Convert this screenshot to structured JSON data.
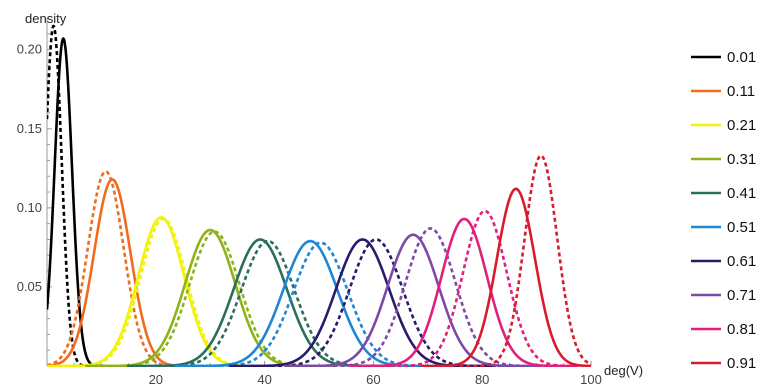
{
  "chart_data": {
    "type": "line",
    "title": "",
    "xlabel": "deg(V)",
    "ylabel": "density",
    "xlim": [
      0,
      100
    ],
    "ylim": [
      0,
      0.215
    ],
    "x_ticks": [
      20,
      40,
      60,
      80,
      100
    ],
    "y_ticks": [
      0.05,
      0.1,
      0.15,
      0.2
    ],
    "x_tick_labels": [
      "20",
      "40",
      "60",
      "80",
      "100"
    ],
    "y_tick_labels": [
      "0.05",
      "0.10",
      "0.15",
      "0.20"
    ],
    "grid": false,
    "legend_position": "right",
    "line_styles": {
      "solid": "curve",
      "dashed": "approximation"
    },
    "series": [
      {
        "name": "0.01",
        "color": "#000000",
        "solid": {
          "mean": 3.0,
          "sd": 1.6,
          "peak": 0.207
        },
        "dashed": {
          "mean": 1.2,
          "sd": 1.5,
          "peak": 0.215
        }
      },
      {
        "name": "0.11",
        "color": "#f26b1d",
        "solid": {
          "mean": 12.0,
          "sd": 3.35,
          "peak": 0.118
        },
        "dashed": {
          "mean": 10.8,
          "sd": 3.3,
          "peak": 0.123
        }
      },
      {
        "name": "0.21",
        "color": "#f2f20d",
        "solid": {
          "mean": 21.0,
          "sd": 4.2,
          "peak": 0.094
        },
        "dashed": {
          "mean": 21.4,
          "sd": 4.2,
          "peak": 0.093
        }
      },
      {
        "name": "0.31",
        "color": "#8db31a",
        "solid": {
          "mean": 30.0,
          "sd": 4.6,
          "peak": 0.086
        },
        "dashed": {
          "mean": 30.8,
          "sd": 4.6,
          "peak": 0.085
        }
      },
      {
        "name": "0.41",
        "color": "#2a6e5e",
        "solid": {
          "mean": 39.2,
          "sd": 4.9,
          "peak": 0.08
        },
        "dashed": {
          "mean": 40.6,
          "sd": 4.9,
          "peak": 0.079
        }
      },
      {
        "name": "0.51",
        "color": "#1f86d6",
        "solid": {
          "mean": 48.4,
          "sd": 5.0,
          "peak": 0.079
        },
        "dashed": {
          "mean": 50.3,
          "sd": 5.0,
          "peak": 0.078
        }
      },
      {
        "name": "0.61",
        "color": "#2a1a6e",
        "solid": {
          "mean": 58.0,
          "sd": 4.9,
          "peak": 0.08
        },
        "dashed": {
          "mean": 60.5,
          "sd": 4.9,
          "peak": 0.08
        }
      },
      {
        "name": "0.71",
        "color": "#7c4aa6",
        "solid": {
          "mean": 67.3,
          "sd": 4.7,
          "peak": 0.083
        },
        "dashed": {
          "mean": 70.5,
          "sd": 4.6,
          "peak": 0.087
        }
      },
      {
        "name": "0.81",
        "color": "#e21f7a",
        "solid": {
          "mean": 76.7,
          "sd": 4.2,
          "peak": 0.093
        },
        "dashed": {
          "mean": 80.5,
          "sd": 4.0,
          "peak": 0.098
        }
      },
      {
        "name": "0.91",
        "color": "#d81c2e",
        "solid": {
          "mean": 86.2,
          "sd": 3.5,
          "peak": 0.112
        },
        "dashed": {
          "mean": 90.8,
          "sd": 3.0,
          "peak": 0.133
        }
      }
    ]
  }
}
